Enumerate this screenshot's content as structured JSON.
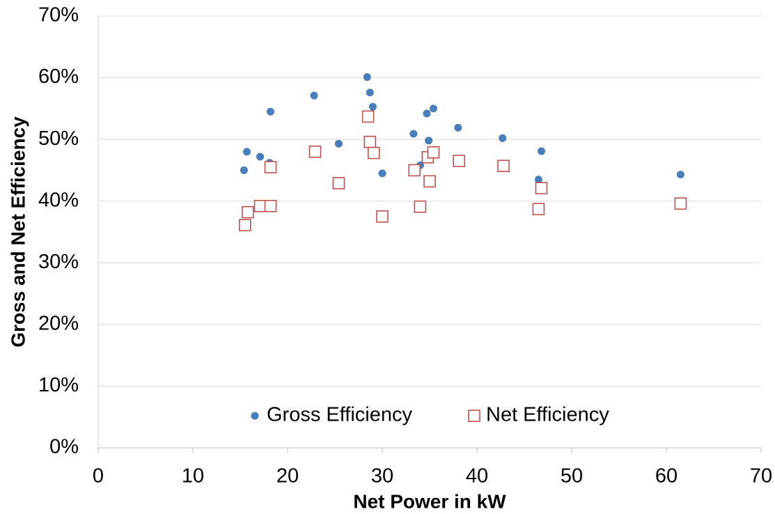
{
  "chart_data": {
    "type": "scatter",
    "x_label": "Net Power in kW",
    "y_label": "Gross and Net Efficiency",
    "xlim": [
      0,
      70
    ],
    "xticks": [
      0,
      10,
      20,
      30,
      40,
      50,
      60,
      70
    ],
    "ylim": [
      0,
      70
    ],
    "yticks": [
      {
        "value": 0,
        "label": "0%"
      },
      {
        "value": 10,
        "label": "10%"
      },
      {
        "value": 20,
        "label": "20%"
      },
      {
        "value": 30,
        "label": "30%"
      },
      {
        "value": 40,
        "label": "40%"
      },
      {
        "value": 50,
        "label": "50%"
      },
      {
        "value": 60,
        "label": "60%"
      },
      {
        "value": 70,
        "label": "70%"
      }
    ],
    "grid": true,
    "legend": "lower center",
    "series": [
      {
        "name": "Gross Efficiency",
        "color": "#4a7ebb",
        "marker": "circle",
        "x": [
          15.4,
          15.7,
          17.1,
          18.1,
          18.2,
          22.8,
          25.4,
          28.4,
          28.7,
          29.0,
          30.0,
          33.3,
          34.0,
          34.7,
          34.9,
          35.4,
          38.0,
          42.7,
          46.5,
          46.8,
          61.5
        ],
        "values": [
          45.0,
          48.0,
          47.2,
          46.2,
          54.5,
          57.1,
          49.3,
          60.1,
          57.6,
          55.3,
          44.5,
          50.9,
          45.8,
          54.2,
          49.8,
          55.0,
          51.9,
          50.2,
          43.5,
          48.1,
          44.3
        ]
      },
      {
        "name": "Net Efficiency",
        "color": "#c0504d",
        "marker": "square",
        "x": [
          15.5,
          15.8,
          17.1,
          18.2,
          18.2,
          22.9,
          25.4,
          28.5,
          28.7,
          29.1,
          30.0,
          33.4,
          34.0,
          34.8,
          35.0,
          35.4,
          38.1,
          42.8,
          46.5,
          46.8,
          61.5
        ],
        "values": [
          36.1,
          38.2,
          39.2,
          39.2,
          45.5,
          48.0,
          42.9,
          53.7,
          49.6,
          47.8,
          37.5,
          45.0,
          39.1,
          47.1,
          43.2,
          47.9,
          46.5,
          45.7,
          38.7,
          42.1,
          39.6
        ]
      }
    ]
  }
}
